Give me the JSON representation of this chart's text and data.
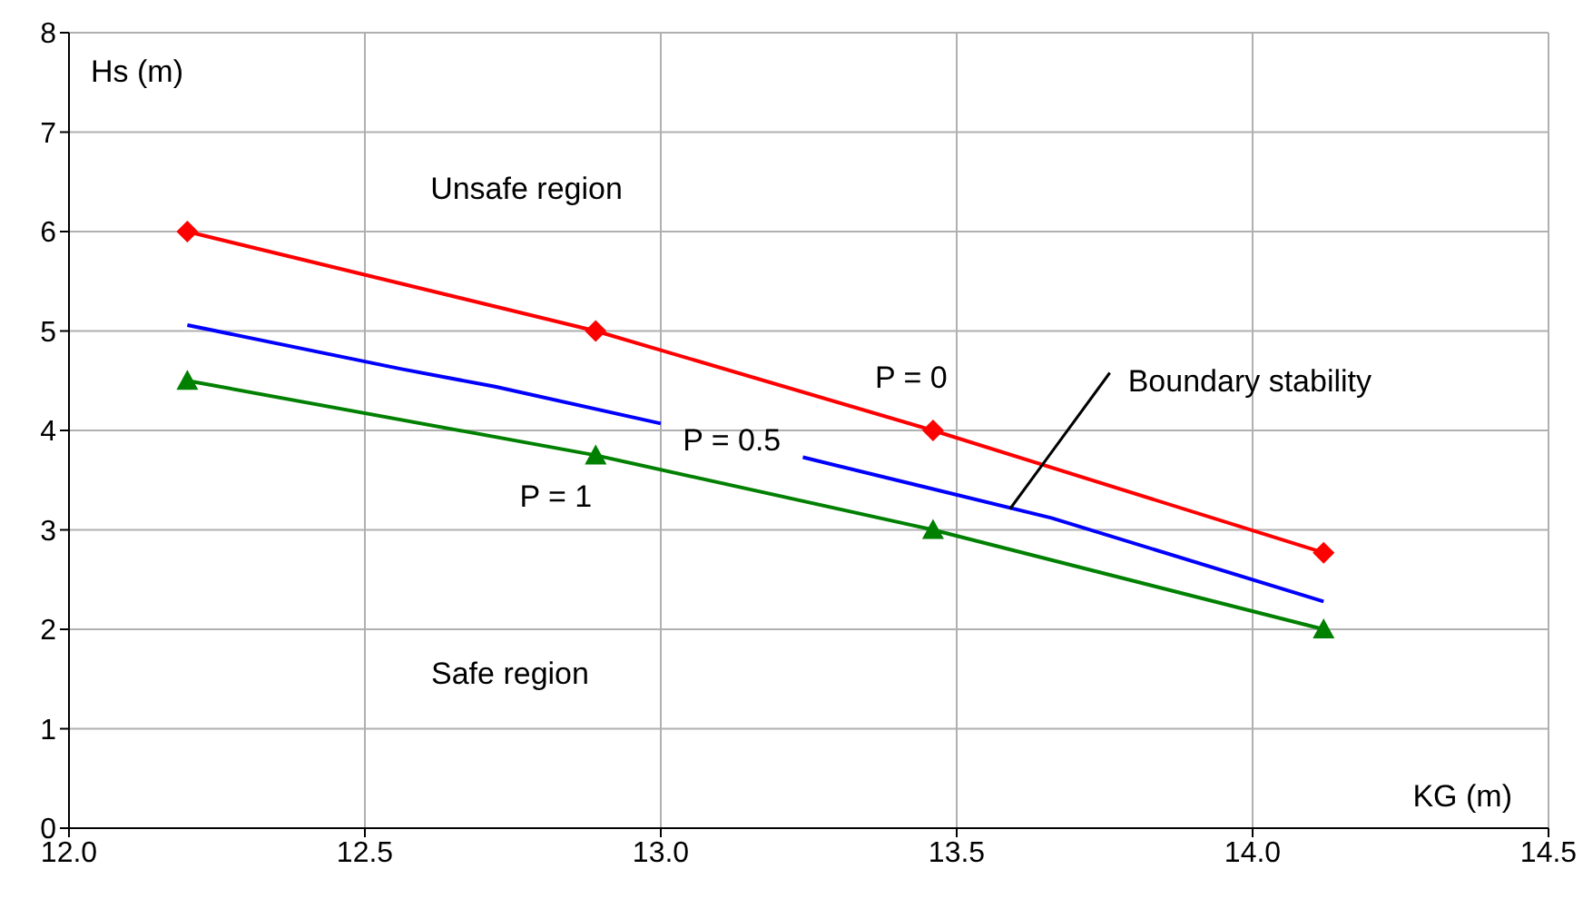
{
  "chart_data": {
    "type": "line",
    "xlabel": "KG (m)",
    "ylabel": "Hs (m)",
    "xlim": [
      12.0,
      14.5
    ],
    "xticks": [
      {
        "value": 12.0,
        "label": "12.0"
      },
      {
        "value": 12.5,
        "label": "12.5"
      },
      {
        "value": 13.0,
        "label": "13.0"
      },
      {
        "value": 13.5,
        "label": "13.5"
      },
      {
        "value": 14.0,
        "label": "14.0"
      },
      {
        "value": 14.5,
        "label": "14.5"
      }
    ],
    "ylim": [
      0,
      8
    ],
    "yticks": [
      0,
      1,
      2,
      3,
      4,
      5,
      6,
      7,
      8
    ],
    "grid": true,
    "series": [
      {
        "name": "P = 0",
        "color": "#ff0000",
        "marker": "diamond",
        "x": [
          12.2,
          12.89,
          13.46,
          14.12
        ],
        "values": [
          6.0,
          5.0,
          4.0,
          2.77
        ]
      },
      {
        "name": "P = 0.5",
        "color": "#0000ff",
        "marker": "none",
        "x": [
          12.2,
          12.56,
          12.72,
          13.0,
          13.12,
          13.24,
          13.66,
          14.12
        ],
        "values": [
          5.06,
          4.62,
          4.44,
          4.07,
          null,
          3.73,
          3.12,
          2.28
        ]
      },
      {
        "name": "P = 1",
        "color": "#008000",
        "marker": "triangle",
        "x": [
          12.2,
          12.89,
          13.46,
          14.12
        ],
        "values": [
          4.5,
          3.75,
          3.0,
          2.0
        ]
      }
    ],
    "annotations": [
      "Unsafe region",
      "Safe region",
      {
        "text": "Boundary stability",
        "x": 13.59,
        "y": 3.21
      }
    ]
  }
}
